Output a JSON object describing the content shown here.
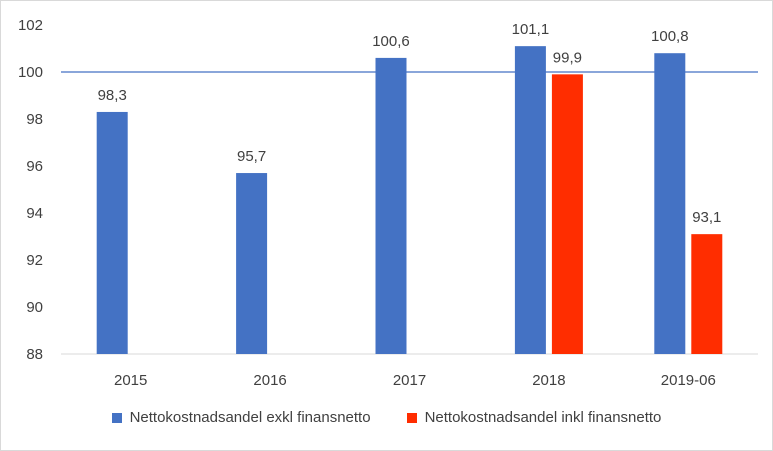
{
  "chart_data": {
    "type": "bar",
    "categories": [
      "2015",
      "2016",
      "2017",
      "2018",
      "2019-06"
    ],
    "series": [
      {
        "name": "Nettokostnadsandel exkl finansnetto",
        "color": "#4472c4",
        "values": [
          98.3,
          95.7,
          100.6,
          101.1,
          100.8
        ],
        "labels": [
          "98,3",
          "95,7",
          "100,6",
          "101,1",
          "100,8"
        ]
      },
      {
        "name": "Nettokostnadsandel inkl finansnetto",
        "color": "#ff2d00",
        "values": [
          null,
          null,
          null,
          99.9,
          93.1
        ],
        "labels": [
          "",
          "",
          "",
          "99,9",
          "93,1"
        ]
      }
    ],
    "ylim": [
      88,
      102
    ],
    "yticks": [
      "88",
      "90",
      "92",
      "94",
      "96",
      "98",
      "100",
      "102"
    ],
    "reference_line": {
      "value": 100,
      "color": "#4472c4"
    },
    "grid": false,
    "legend_position": "bottom"
  }
}
